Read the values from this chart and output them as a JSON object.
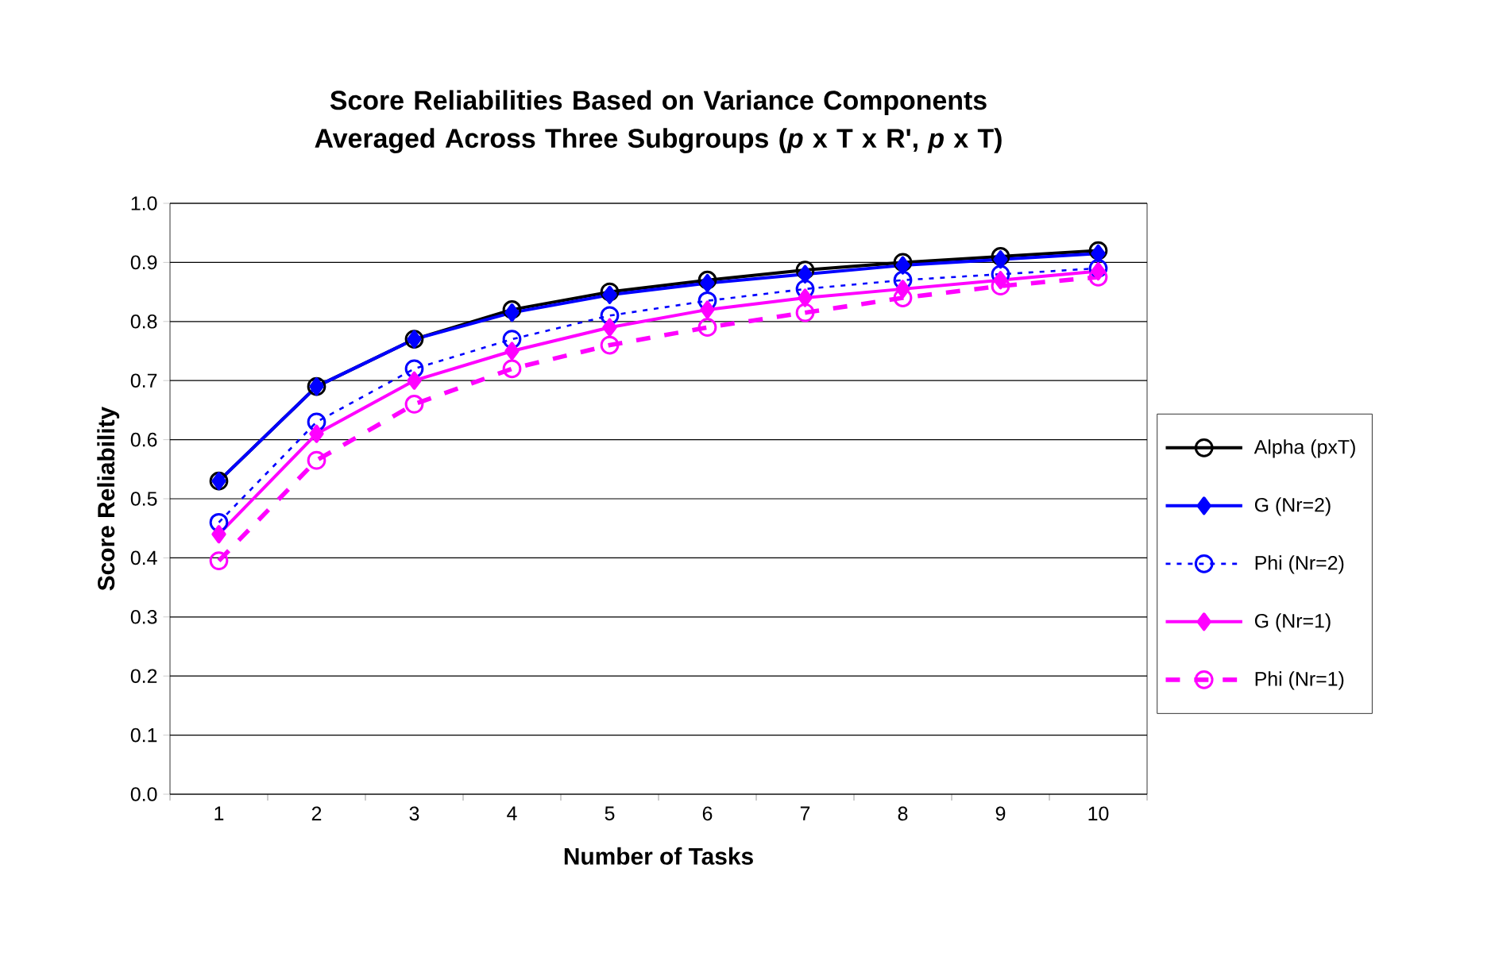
{
  "chart_data": {
    "type": "line",
    "title": "Score Reliabilities Based on Variance Components Averaged Across Three Subgroups (*p* x T x R', *p* x T)",
    "xlabel": "Number of Tasks",
    "ylabel": "Score Reliability",
    "categories": [
      "1",
      "2",
      "3",
      "4",
      "5",
      "6",
      "7",
      "8",
      "9",
      "10"
    ],
    "series": [
      {
        "name": "Alpha (pxT)",
        "color": "#000000",
        "marker": "circle",
        "line_style": "solid",
        "values": [
          0.53,
          0.69,
          0.77,
          0.82,
          0.85,
          0.87,
          0.887,
          0.9,
          0.91,
          0.92
        ]
      },
      {
        "name": "G (Nr=2)",
        "color": "#0000ff",
        "marker": "diamond",
        "line_style": "solid",
        "values": [
          0.53,
          0.69,
          0.77,
          0.815,
          0.845,
          0.865,
          0.88,
          0.895,
          0.905,
          0.915
        ]
      },
      {
        "name": "Phi (Nr=2)",
        "color": "#0000ff",
        "marker": "circle",
        "line_style": "dotted",
        "values": [
          0.46,
          0.63,
          0.72,
          0.77,
          0.81,
          0.835,
          0.855,
          0.87,
          0.88,
          0.89
        ]
      },
      {
        "name": "G (Nr=1)",
        "color": "#ff00ff",
        "marker": "diamond",
        "line_style": "solid",
        "values": [
          0.44,
          0.61,
          0.7,
          0.75,
          0.79,
          0.82,
          0.84,
          0.855,
          0.87,
          0.885
        ]
      },
      {
        "name": "Phi (Nr=1)",
        "color": "#ff00ff",
        "marker": "circle",
        "line_style": "dashed",
        "values": [
          0.395,
          0.565,
          0.66,
          0.72,
          0.76,
          0.79,
          0.815,
          0.84,
          0.86,
          0.875
        ]
      }
    ],
    "ylim": [
      0,
      1.0
    ],
    "yticks": [
      {
        "value": 0,
        "label": "0.0"
      },
      {
        "value": 0.1,
        "label": "0.1"
      },
      {
        "value": 0.2,
        "label": "0.2"
      },
      {
        "value": 0.3,
        "label": "0.3"
      },
      {
        "value": 0.4,
        "label": "0.4"
      },
      {
        "value": 0.5,
        "label": "0.5"
      },
      {
        "value": 0.6,
        "label": "0.6"
      },
      {
        "value": 0.7,
        "label": "0.7"
      },
      {
        "value": 0.8,
        "label": "0.8"
      },
      {
        "value": 0.9,
        "label": "0.9"
      },
      {
        "value": 1.0,
        "label": "1.0"
      }
    ],
    "grid": "y",
    "legend": "right"
  }
}
